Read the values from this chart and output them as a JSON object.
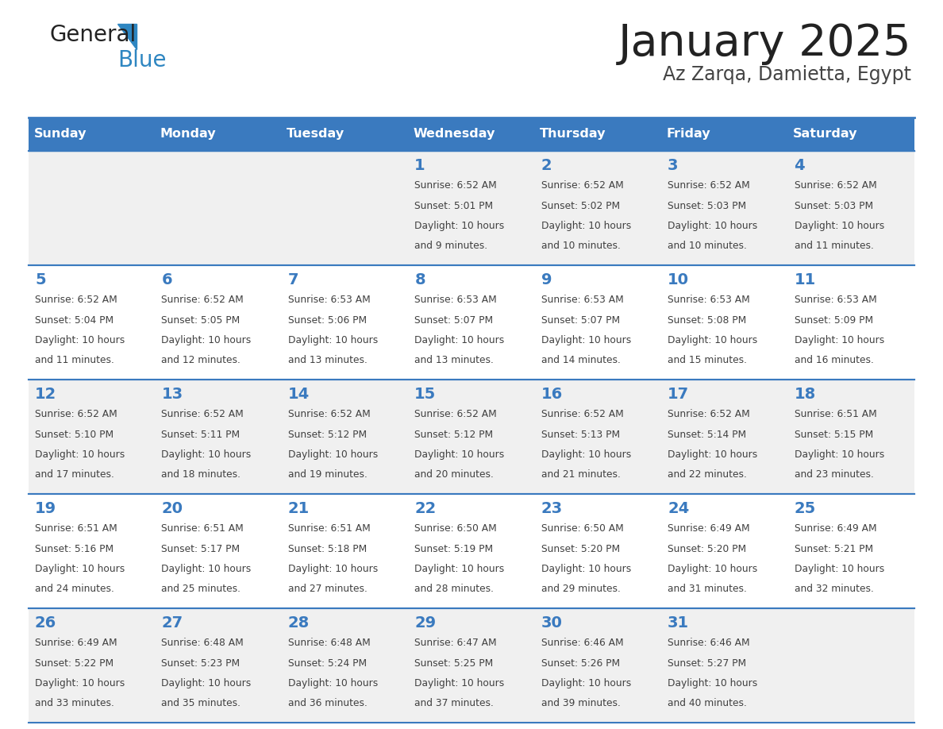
{
  "title": "January 2025",
  "subtitle": "Az Zarqa, Damietta, Egypt",
  "header_color": "#3a7abf",
  "header_text_color": "#ffffff",
  "cell_bg_odd": "#f0f0f0",
  "cell_bg_even": "#ffffff",
  "day_text_color": "#3a7abf",
  "content_text_color": "#404040",
  "border_color": "#3a7abf",
  "days_of_week": [
    "Sunday",
    "Monday",
    "Tuesday",
    "Wednesday",
    "Thursday",
    "Friday",
    "Saturday"
  ],
  "weeks": [
    [
      {
        "day": null,
        "sunrise": null,
        "sunset": null,
        "daylight_line1": null,
        "daylight_line2": null
      },
      {
        "day": null,
        "sunrise": null,
        "sunset": null,
        "daylight_line1": null,
        "daylight_line2": null
      },
      {
        "day": null,
        "sunrise": null,
        "sunset": null,
        "daylight_line1": null,
        "daylight_line2": null
      },
      {
        "day": 1,
        "sunrise": "6:52 AM",
        "sunset": "5:01 PM",
        "daylight_line1": "Daylight: 10 hours",
        "daylight_line2": "and 9 minutes."
      },
      {
        "day": 2,
        "sunrise": "6:52 AM",
        "sunset": "5:02 PM",
        "daylight_line1": "Daylight: 10 hours",
        "daylight_line2": "and 10 minutes."
      },
      {
        "day": 3,
        "sunrise": "6:52 AM",
        "sunset": "5:03 PM",
        "daylight_line1": "Daylight: 10 hours",
        "daylight_line2": "and 10 minutes."
      },
      {
        "day": 4,
        "sunrise": "6:52 AM",
        "sunset": "5:03 PM",
        "daylight_line1": "Daylight: 10 hours",
        "daylight_line2": "and 11 minutes."
      }
    ],
    [
      {
        "day": 5,
        "sunrise": "6:52 AM",
        "sunset": "5:04 PM",
        "daylight_line1": "Daylight: 10 hours",
        "daylight_line2": "and 11 minutes."
      },
      {
        "day": 6,
        "sunrise": "6:52 AM",
        "sunset": "5:05 PM",
        "daylight_line1": "Daylight: 10 hours",
        "daylight_line2": "and 12 minutes."
      },
      {
        "day": 7,
        "sunrise": "6:53 AM",
        "sunset": "5:06 PM",
        "daylight_line1": "Daylight: 10 hours",
        "daylight_line2": "and 13 minutes."
      },
      {
        "day": 8,
        "sunrise": "6:53 AM",
        "sunset": "5:07 PM",
        "daylight_line1": "Daylight: 10 hours",
        "daylight_line2": "and 13 minutes."
      },
      {
        "day": 9,
        "sunrise": "6:53 AM",
        "sunset": "5:07 PM",
        "daylight_line1": "Daylight: 10 hours",
        "daylight_line2": "and 14 minutes."
      },
      {
        "day": 10,
        "sunrise": "6:53 AM",
        "sunset": "5:08 PM",
        "daylight_line1": "Daylight: 10 hours",
        "daylight_line2": "and 15 minutes."
      },
      {
        "day": 11,
        "sunrise": "6:53 AM",
        "sunset": "5:09 PM",
        "daylight_line1": "Daylight: 10 hours",
        "daylight_line2": "and 16 minutes."
      }
    ],
    [
      {
        "day": 12,
        "sunrise": "6:52 AM",
        "sunset": "5:10 PM",
        "daylight_line1": "Daylight: 10 hours",
        "daylight_line2": "and 17 minutes."
      },
      {
        "day": 13,
        "sunrise": "6:52 AM",
        "sunset": "5:11 PM",
        "daylight_line1": "Daylight: 10 hours",
        "daylight_line2": "and 18 minutes."
      },
      {
        "day": 14,
        "sunrise": "6:52 AM",
        "sunset": "5:12 PM",
        "daylight_line1": "Daylight: 10 hours",
        "daylight_line2": "and 19 minutes."
      },
      {
        "day": 15,
        "sunrise": "6:52 AM",
        "sunset": "5:12 PM",
        "daylight_line1": "Daylight: 10 hours",
        "daylight_line2": "and 20 minutes."
      },
      {
        "day": 16,
        "sunrise": "6:52 AM",
        "sunset": "5:13 PM",
        "daylight_line1": "Daylight: 10 hours",
        "daylight_line2": "and 21 minutes."
      },
      {
        "day": 17,
        "sunrise": "6:52 AM",
        "sunset": "5:14 PM",
        "daylight_line1": "Daylight: 10 hours",
        "daylight_line2": "and 22 minutes."
      },
      {
        "day": 18,
        "sunrise": "6:51 AM",
        "sunset": "5:15 PM",
        "daylight_line1": "Daylight: 10 hours",
        "daylight_line2": "and 23 minutes."
      }
    ],
    [
      {
        "day": 19,
        "sunrise": "6:51 AM",
        "sunset": "5:16 PM",
        "daylight_line1": "Daylight: 10 hours",
        "daylight_line2": "and 24 minutes."
      },
      {
        "day": 20,
        "sunrise": "6:51 AM",
        "sunset": "5:17 PM",
        "daylight_line1": "Daylight: 10 hours",
        "daylight_line2": "and 25 minutes."
      },
      {
        "day": 21,
        "sunrise": "6:51 AM",
        "sunset": "5:18 PM",
        "daylight_line1": "Daylight: 10 hours",
        "daylight_line2": "and 27 minutes."
      },
      {
        "day": 22,
        "sunrise": "6:50 AM",
        "sunset": "5:19 PM",
        "daylight_line1": "Daylight: 10 hours",
        "daylight_line2": "and 28 minutes."
      },
      {
        "day": 23,
        "sunrise": "6:50 AM",
        "sunset": "5:20 PM",
        "daylight_line1": "Daylight: 10 hours",
        "daylight_line2": "and 29 minutes."
      },
      {
        "day": 24,
        "sunrise": "6:49 AM",
        "sunset": "5:20 PM",
        "daylight_line1": "Daylight: 10 hours",
        "daylight_line2": "and 31 minutes."
      },
      {
        "day": 25,
        "sunrise": "6:49 AM",
        "sunset": "5:21 PM",
        "daylight_line1": "Daylight: 10 hours",
        "daylight_line2": "and 32 minutes."
      }
    ],
    [
      {
        "day": 26,
        "sunrise": "6:49 AM",
        "sunset": "5:22 PM",
        "daylight_line1": "Daylight: 10 hours",
        "daylight_line2": "and 33 minutes."
      },
      {
        "day": 27,
        "sunrise": "6:48 AM",
        "sunset": "5:23 PM",
        "daylight_line1": "Daylight: 10 hours",
        "daylight_line2": "and 35 minutes."
      },
      {
        "day": 28,
        "sunrise": "6:48 AM",
        "sunset": "5:24 PM",
        "daylight_line1": "Daylight: 10 hours",
        "daylight_line2": "and 36 minutes."
      },
      {
        "day": 29,
        "sunrise": "6:47 AM",
        "sunset": "5:25 PM",
        "daylight_line1": "Daylight: 10 hours",
        "daylight_line2": "and 37 minutes."
      },
      {
        "day": 30,
        "sunrise": "6:46 AM",
        "sunset": "5:26 PM",
        "daylight_line1": "Daylight: 10 hours",
        "daylight_line2": "and 39 minutes."
      },
      {
        "day": 31,
        "sunrise": "6:46 AM",
        "sunset": "5:27 PM",
        "daylight_line1": "Daylight: 10 hours",
        "daylight_line2": "and 40 minutes."
      },
      {
        "day": null,
        "sunrise": null,
        "sunset": null,
        "daylight_line1": null,
        "daylight_line2": null
      }
    ]
  ],
  "logo_general_color": "#222222",
  "logo_blue_color": "#2e86c1",
  "title_color": "#222222",
  "subtitle_color": "#444444"
}
